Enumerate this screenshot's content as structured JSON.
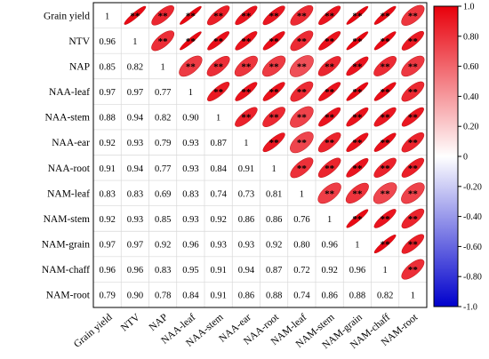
{
  "chart_data": {
    "type": "heatmap",
    "variables": [
      "Grain yield",
      "NTV",
      "NAP",
      "NAA-leaf",
      "NAA-stem",
      "NAA-ear",
      "NAA-root",
      "NAM-leaf",
      "NAM-stem",
      "NAM-grain",
      "NAM-chaff",
      "NAM-root"
    ],
    "lower_values": [
      [
        1
      ],
      [
        0.96,
        1
      ],
      [
        0.85,
        0.82,
        1
      ],
      [
        0.97,
        0.97,
        0.77,
        1
      ],
      [
        0.88,
        0.94,
        0.82,
        0.9,
        1
      ],
      [
        0.92,
        0.93,
        0.79,
        0.93,
        0.87,
        1
      ],
      [
        0.91,
        0.94,
        0.77,
        0.93,
        0.84,
        0.91,
        1
      ],
      [
        0.83,
        0.83,
        0.69,
        0.83,
        0.74,
        0.73,
        0.81,
        1
      ],
      [
        0.92,
        0.93,
        0.85,
        0.93,
        0.92,
        0.86,
        0.86,
        0.76,
        1
      ],
      [
        0.97,
        0.97,
        0.92,
        0.96,
        0.93,
        0.93,
        0.92,
        0.8,
        0.96,
        1
      ],
      [
        0.96,
        0.96,
        0.83,
        0.95,
        0.91,
        0.94,
        0.87,
        0.72,
        0.92,
        0.96,
        1
      ],
      [
        0.79,
        0.9,
        0.78,
        0.84,
        0.91,
        0.86,
        0.88,
        0.74,
        0.86,
        0.88,
        0.82,
        1
      ]
    ],
    "upper_label": "**",
    "colorbar": {
      "min": -1.0,
      "max": 1.0,
      "ticks": [
        "1.0",
        "0.80",
        "0.60",
        "0.40",
        "0.20",
        "0",
        "-0.20",
        "-0.40",
        "-0.60",
        "-0.80",
        "-1.0"
      ],
      "colors": [
        "#0000cc",
        "#ffffff",
        "#e8000b"
      ]
    },
    "lower_shape": "number",
    "upper_shape": "ellipse"
  }
}
